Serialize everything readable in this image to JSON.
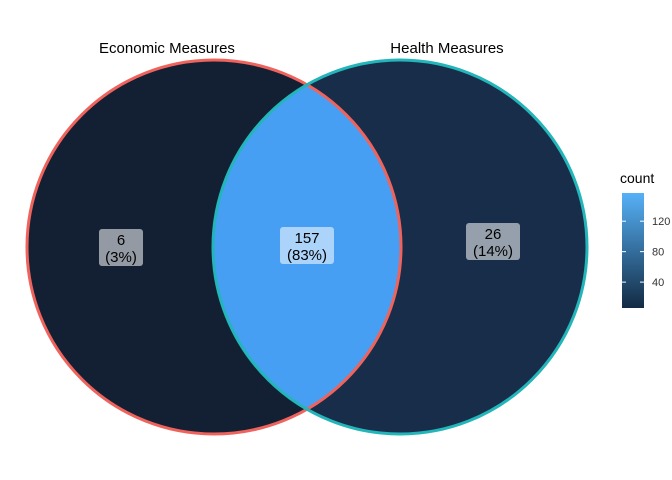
{
  "diagram": {
    "type": "venn",
    "sets": [
      {
        "name": "Economic Measures",
        "border_color": "#f0635c"
      },
      {
        "name": "Health Measures",
        "border_color": "#22b5b9"
      }
    ],
    "regions": [
      {
        "id": "economic-only",
        "count": "6",
        "percent": "(3%)",
        "fill": "#132033"
      },
      {
        "id": "intersection",
        "count": "157",
        "percent": "(83%)",
        "fill": "#479ff4"
      },
      {
        "id": "health-only",
        "count": "26",
        "percent": "(14%)",
        "fill": "#182d49"
      }
    ],
    "legend": {
      "title": "count",
      "ticks": [
        "40",
        "80",
        "120"
      ],
      "gradient_low": "#132b43",
      "gradient_high": "#56b1f7",
      "min": 6,
      "max": 157
    }
  }
}
